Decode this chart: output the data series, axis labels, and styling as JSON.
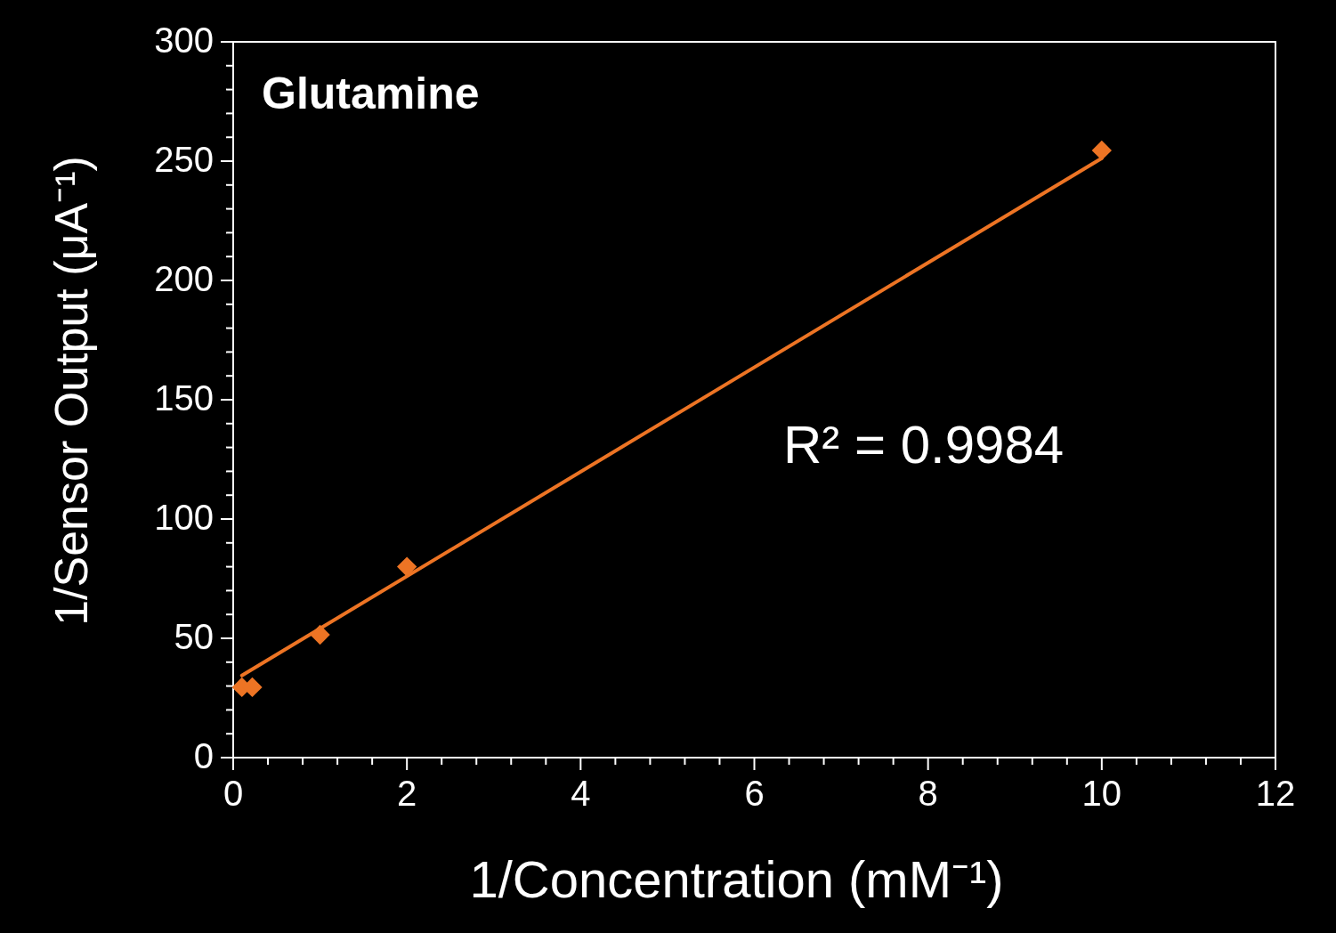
{
  "chart_data": {
    "type": "scatter",
    "title": "Glutamine",
    "xlabel": "1/Concentration (mM⁻¹)",
    "ylabel": "1/Sensor Output (μA⁻¹)",
    "annotations": [
      "R² = 0.9984"
    ],
    "xlim": [
      0,
      12
    ],
    "ylim": [
      0,
      300
    ],
    "xticks": [
      0,
      {
        "value": 0.4,
        "label": null
      },
      {
        "value": 0.8,
        "label": null
      },
      {
        "value": 1.2,
        "label": null
      },
      {
        "value": 1.6,
        "label": null
      },
      2,
      {
        "value": 2.4,
        "label": null
      },
      {
        "value": 2.8,
        "label": null
      },
      {
        "value": 3.2,
        "label": null
      },
      {
        "value": 3.6,
        "label": null
      },
      4,
      {
        "value": 4.4,
        "label": null
      },
      {
        "value": 4.8,
        "label": null
      },
      {
        "value": 5.2,
        "label": null
      },
      {
        "value": 5.6,
        "label": null
      },
      6,
      {
        "value": 6.4,
        "label": null
      },
      {
        "value": 6.8,
        "label": null
      },
      {
        "value": 7.2,
        "label": null
      },
      {
        "value": 7.6,
        "label": null
      },
      8,
      {
        "value": 8.4,
        "label": null
      },
      {
        "value": 8.8,
        "label": null
      },
      {
        "value": 9.2,
        "label": null
      },
      {
        "value": 9.6,
        "label": null
      },
      10,
      {
        "value": 10.4,
        "label": null
      },
      {
        "value": 10.8,
        "label": null
      },
      {
        "value": 11.2,
        "label": null
      },
      {
        "value": 11.6,
        "label": null
      },
      12
    ],
    "yticks": [
      0,
      {
        "value": 10,
        "label": null
      },
      {
        "value": 20,
        "label": null
      },
      {
        "value": 30,
        "label": null
      },
      {
        "value": 40,
        "label": null
      },
      50,
      {
        "value": 60,
        "label": null
      },
      {
        "value": 70,
        "label": null
      },
      {
        "value": 80,
        "label": null
      },
      {
        "value": 90,
        "label": null
      },
      100,
      {
        "value": 110,
        "label": null
      },
      {
        "value": 120,
        "label": null
      },
      {
        "value": 130,
        "label": null
      },
      {
        "value": 140,
        "label": null
      },
      150,
      {
        "value": 160,
        "label": null
      },
      {
        "value": 170,
        "label": null
      },
      {
        "value": 180,
        "label": null
      },
      {
        "value": 190,
        "label": null
      },
      200,
      {
        "value": 210,
        "label": null
      },
      {
        "value": 220,
        "label": null
      },
      {
        "value": 230,
        "label": null
      },
      {
        "value": 240,
        "label": null
      },
      250,
      {
        "value": 260,
        "label": null
      },
      {
        "value": 270,
        "label": null
      },
      {
        "value": 280,
        "label": null
      },
      {
        "value": 290,
        "label": null
      },
      300
    ],
    "grid": false,
    "series": [
      {
        "type": "line",
        "color": "#ed7424",
        "x": [
          0.1,
          10
        ],
        "values": [
          34.4,
          251.2
        ],
        "marker": "none",
        "line_style": "solid"
      },
      {
        "color": "#ed7424",
        "x": [
          0.1,
          0.22,
          1,
          2,
          10
        ],
        "values": [
          29.5,
          29.5,
          51.5,
          80,
          254.5
        ],
        "marker": "diamond"
      }
    ]
  }
}
